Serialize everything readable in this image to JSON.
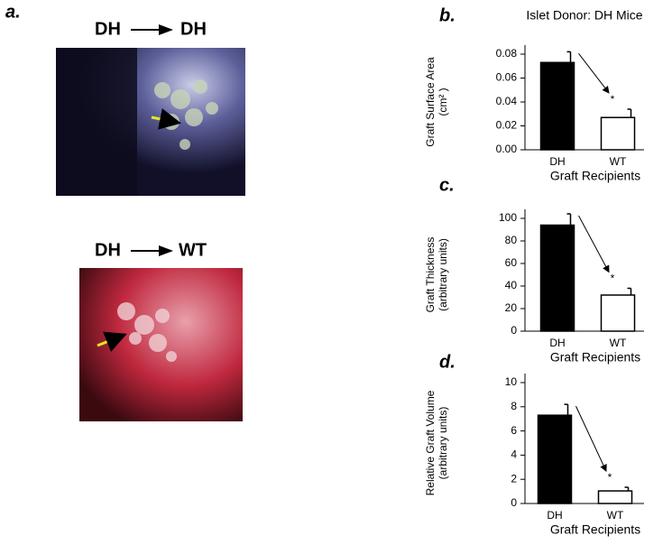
{
  "panel_a": {
    "label": "a.",
    "images": [
      {
        "donor": "DH",
        "recipient": "DH"
      },
      {
        "donor": "DH",
        "recipient": "WT"
      }
    ]
  },
  "chart_data": [
    {
      "type": "bar",
      "panel": "b.",
      "title": "Islet Donor: DH Mice",
      "ylabel": [
        "Graft Surface Area",
        "(cm² )"
      ],
      "xlabel": "Graft Recipients",
      "categories": [
        "DH",
        "WT"
      ],
      "values": [
        0.073,
        0.027
      ],
      "errors": [
        0.009,
        0.007
      ],
      "colors": [
        "#000000",
        "#ffffff"
      ],
      "significance": "*",
      "ylim": [
        0,
        0.08
      ],
      "yticks": [
        {
          "value": 0,
          "label": "0.00"
        },
        {
          "value": 0.02,
          "label": "0.02"
        },
        {
          "value": 0.04,
          "label": "0.04"
        },
        {
          "value": 0.06,
          "label": "0.06"
        },
        {
          "value": 0.08,
          "label": "0.08"
        }
      ]
    },
    {
      "type": "bar",
      "panel": "c.",
      "ylabel": [
        "Graft Thickness",
        "(arbitrary units)"
      ],
      "xlabel": "Graft Recipients",
      "categories": [
        "DH",
        "WT"
      ],
      "values": [
        94,
        32
      ],
      "errors": [
        10,
        6
      ],
      "colors": [
        "#000000",
        "#ffffff"
      ],
      "significance": "*",
      "ylim": [
        0,
        100
      ],
      "yticks": [
        0,
        20,
        40,
        60,
        80,
        100
      ]
    },
    {
      "type": "bar",
      "panel": "d.",
      "ylabel": [
        "Relative Graft Volume",
        "(arbitrary units)"
      ],
      "xlabel": "Graft Recipients",
      "categories": [
        "DH",
        "WT"
      ],
      "values": [
        7.3,
        1.04
      ],
      "errors": [
        0.9,
        0.3
      ],
      "colors": [
        "#000000",
        "#ffffff"
      ],
      "significance": "*",
      "ylim": [
        0,
        10
      ],
      "yticks": [
        0,
        2,
        4,
        6,
        8,
        10
      ]
    }
  ]
}
